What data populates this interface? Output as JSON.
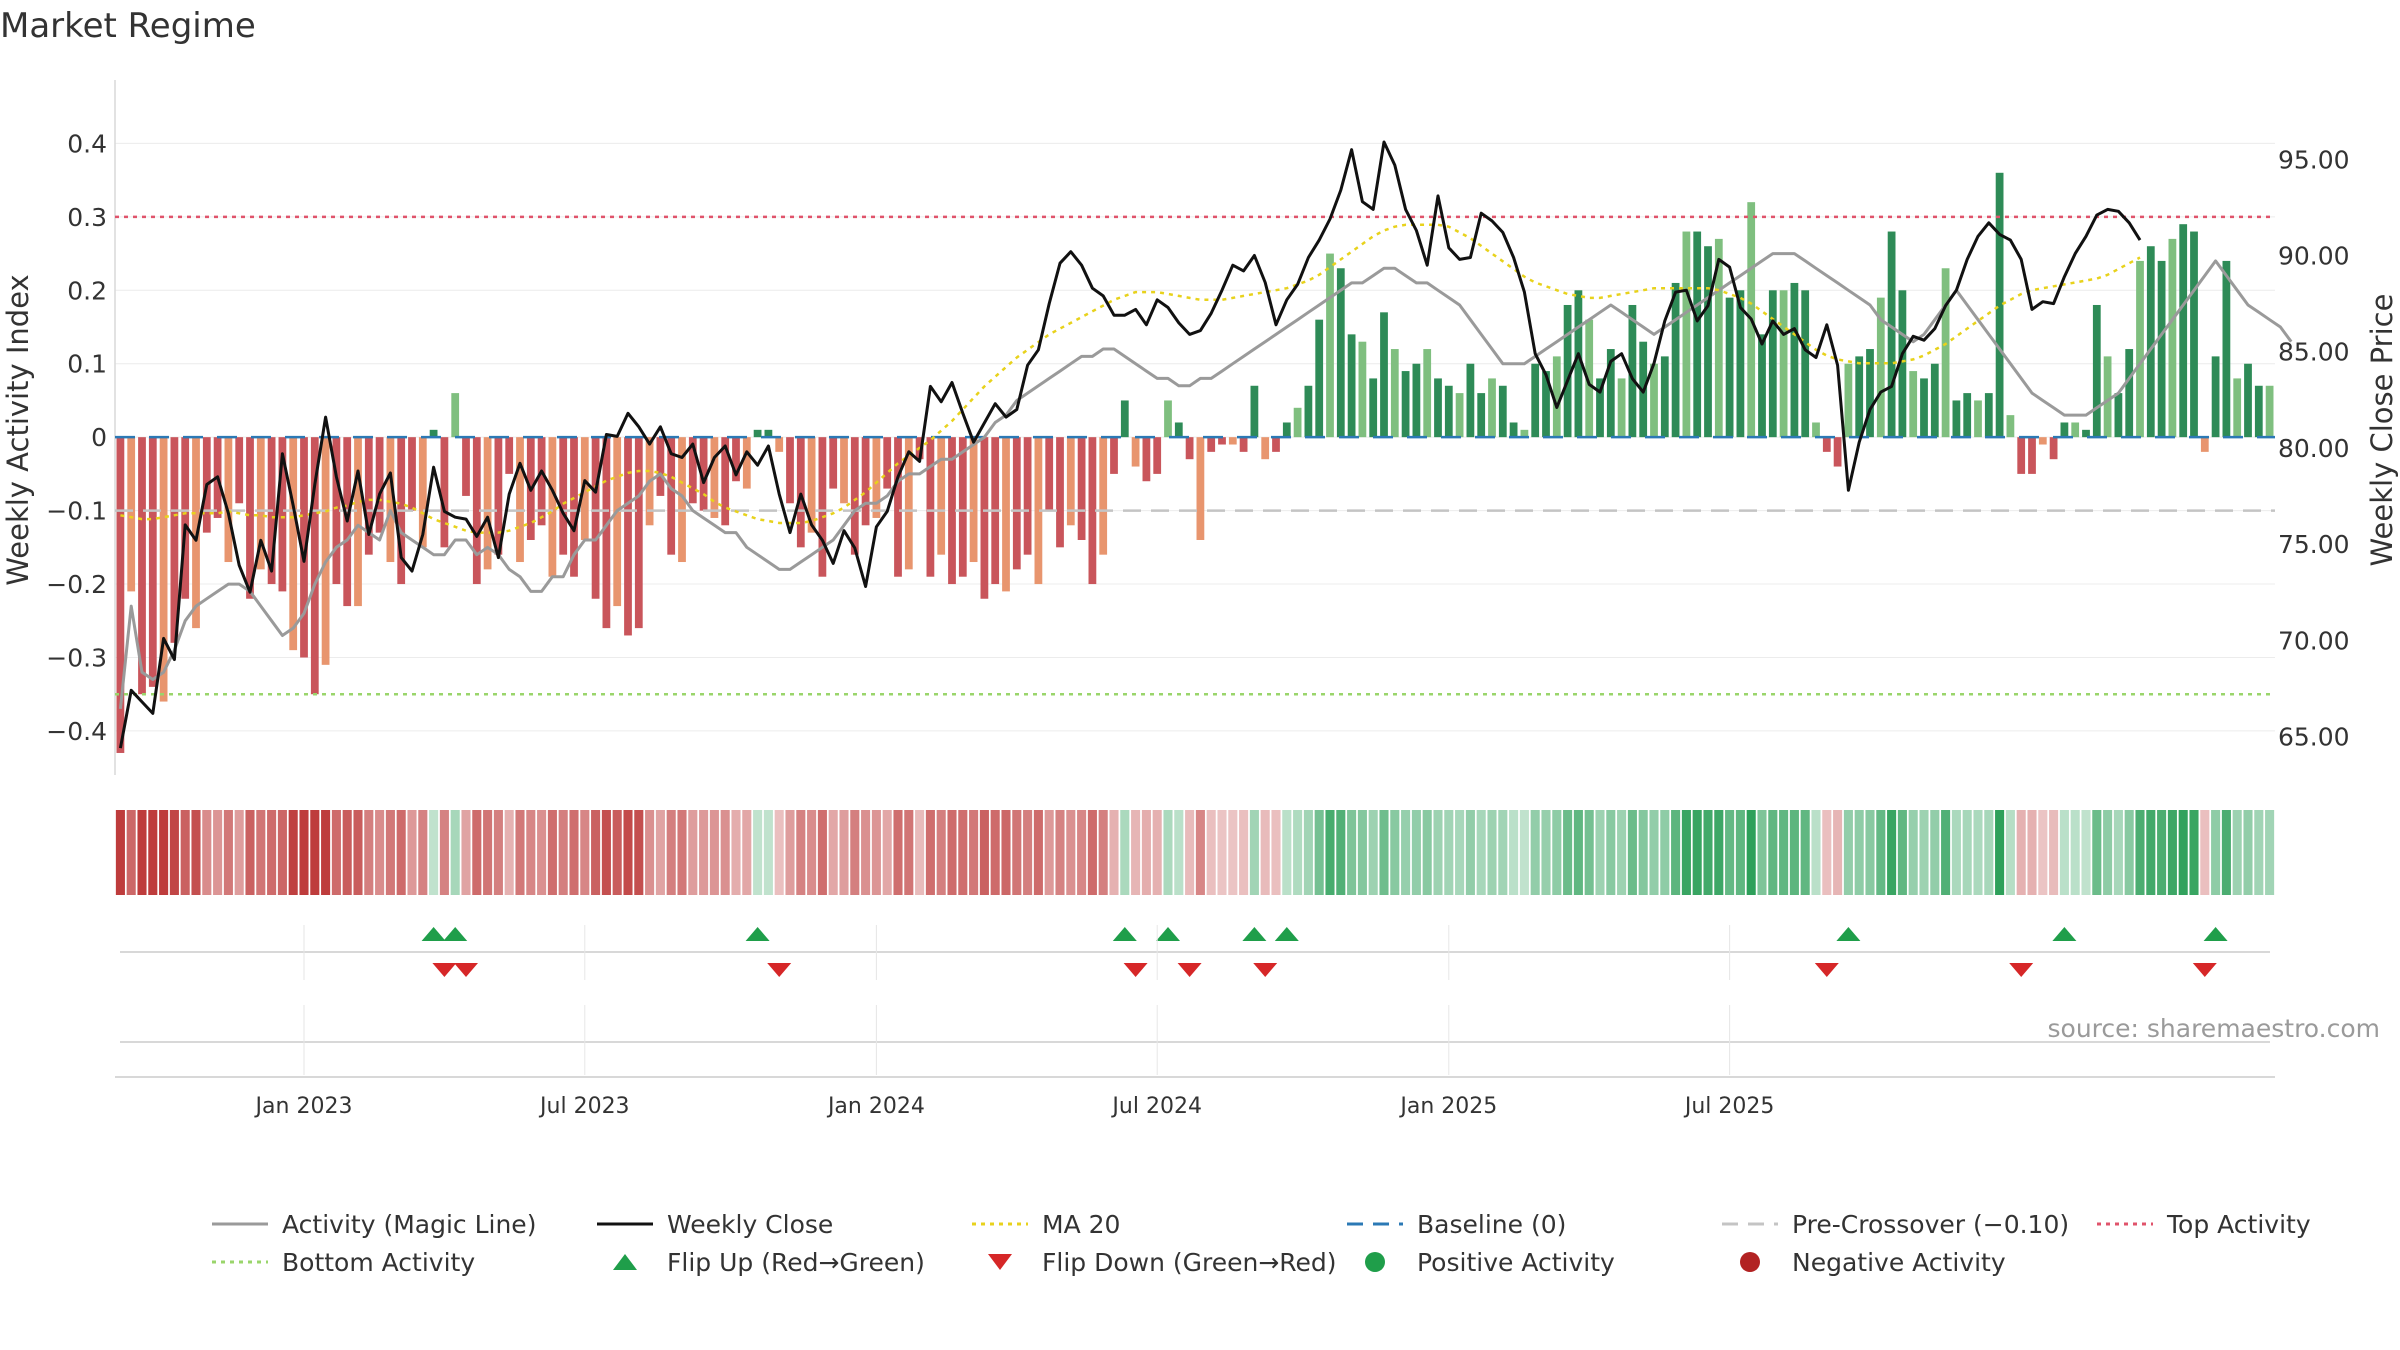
{
  "title": "Market Regime",
  "source": "source: sharemaestro.com",
  "chart_data": {
    "type": "bar",
    "y_left_label": "Weekly Activity Index",
    "y_right_label": "Weekly Close Price",
    "y_left_ticks": [
      "0.4",
      "0.3",
      "0.2",
      "0.1",
      "0",
      "−0.1",
      "−0.2",
      "−0.3",
      "−0.4"
    ],
    "y_right_ticks": [
      "95.00",
      "90.00",
      "85.00",
      "80.00",
      "75.00",
      "70.00",
      "65.00"
    ],
    "ylim_left": [
      -0.46,
      0.47
    ],
    "ylim_right": [
      63.0,
      98.5
    ],
    "x_ticks": [
      "Jan 2023",
      "Jul 2023",
      "Jan 2024",
      "Jul 2024",
      "Jan 2025",
      "Jul 2025"
    ],
    "x_tick_week_index": [
      17,
      43,
      70,
      96,
      123,
      149
    ],
    "top_activity": 0.3,
    "bottom_activity": -0.35,
    "pre_crossover": -0.1,
    "series": [
      {
        "name": "Weekly Activity Index",
        "values": [
          -0.43,
          -0.21,
          -0.35,
          -0.34,
          -0.36,
          -0.28,
          -0.22,
          -0.26,
          -0.13,
          -0.11,
          -0.17,
          -0.09,
          -0.22,
          -0.18,
          -0.2,
          -0.21,
          -0.29,
          -0.3,
          -0.35,
          -0.31,
          -0.2,
          -0.23,
          -0.23,
          -0.16,
          -0.13,
          -0.17,
          -0.2,
          -0.1,
          -0.15,
          0.01,
          -0.15,
          0.06,
          -0.08,
          -0.2,
          -0.18,
          -0.16,
          -0.05,
          -0.17,
          -0.14,
          -0.12,
          -0.19,
          -0.16,
          -0.19,
          -0.14,
          -0.22,
          -0.26,
          -0.23,
          -0.27,
          -0.26,
          -0.12,
          -0.08,
          -0.16,
          -0.17,
          -0.09,
          -0.1,
          -0.11,
          -0.12,
          -0.06,
          -0.07,
          0.01,
          0.01,
          -0.02,
          -0.09,
          -0.15,
          -0.13,
          -0.19,
          -0.07,
          -0.09,
          -0.16,
          -0.12,
          -0.11,
          -0.07,
          -0.19,
          -0.18,
          -0.03,
          -0.19,
          -0.16,
          -0.2,
          -0.19,
          -0.17,
          -0.22,
          -0.2,
          -0.21,
          -0.18,
          -0.16,
          -0.2,
          -0.1,
          -0.15,
          -0.12,
          -0.14,
          -0.2,
          -0.16,
          -0.05,
          0.05,
          -0.04,
          -0.06,
          -0.05,
          0.05,
          0.02,
          -0.03,
          -0.14,
          -0.02,
          -0.01,
          -0.01,
          -0.02,
          0.07,
          -0.03,
          -0.02,
          0.02,
          0.04,
          0.07,
          0.16,
          0.25,
          0.23,
          0.14,
          0.13,
          0.08,
          0.17,
          0.12,
          0.09,
          0.1,
          0.12,
          0.08,
          0.07,
          0.06,
          0.1,
          0.06,
          0.08,
          0.07,
          0.02,
          0.01,
          0.1,
          0.09,
          0.11,
          0.18,
          0.2,
          0.16,
          0.08,
          0.12,
          0.08,
          0.18,
          0.13,
          0.1,
          0.11,
          0.21,
          0.28,
          0.28,
          0.26,
          0.27,
          0.19,
          0.2,
          0.32,
          0.14,
          0.2,
          0.2,
          0.21,
          0.2,
          0.02,
          -0.02,
          -0.04,
          0.1,
          0.11,
          0.12,
          0.19,
          0.28,
          0.2,
          0.09,
          0.08,
          0.1,
          0.23,
          0.05,
          0.06,
          0.05,
          0.06,
          0.36,
          0.03,
          -0.05,
          -0.05,
          -0.01,
          -0.03,
          0.02,
          0.02,
          0.01,
          0.18,
          0.11,
          0.06,
          0.12,
          0.24,
          0.26,
          0.24,
          0.27,
          0.29,
          0.28,
          -0.02,
          0.11,
          0.24,
          0.08,
          0.1,
          0.07,
          0.07
        ]
      },
      {
        "name": "Activity (Magic Line)",
        "values": [
          -0.37,
          -0.23,
          -0.32,
          -0.33,
          -0.32,
          -0.29,
          -0.25,
          -0.23,
          -0.22,
          -0.21,
          -0.2,
          -0.2,
          -0.21,
          -0.23,
          -0.25,
          -0.27,
          -0.26,
          -0.24,
          -0.2,
          -0.17,
          -0.15,
          -0.14,
          -0.12,
          -0.13,
          -0.14,
          -0.1,
          -0.13,
          -0.14,
          -0.15,
          -0.16,
          -0.16,
          -0.14,
          -0.14,
          -0.16,
          -0.15,
          -0.16,
          -0.18,
          -0.19,
          -0.21,
          -0.21,
          -0.19,
          -0.19,
          -0.16,
          -0.14,
          -0.14,
          -0.12,
          -0.1,
          -0.09,
          -0.08,
          -0.06,
          -0.05,
          -0.07,
          -0.08,
          -0.1,
          -0.11,
          -0.12,
          -0.13,
          -0.13,
          -0.15,
          -0.16,
          -0.17,
          -0.18,
          -0.18,
          -0.17,
          -0.16,
          -0.15,
          -0.14,
          -0.12,
          -0.1,
          -0.09,
          -0.09,
          -0.08,
          -0.06,
          -0.05,
          -0.05,
          -0.04,
          -0.03,
          -0.03,
          -0.02,
          -0.01,
          0.0,
          0.02,
          0.03,
          0.05,
          0.06,
          0.07,
          0.08,
          0.09,
          0.1,
          0.11,
          0.11,
          0.12,
          0.12,
          0.11,
          0.1,
          0.09,
          0.08,
          0.08,
          0.07,
          0.07,
          0.08,
          0.08,
          0.09,
          0.1,
          0.11,
          0.12,
          0.13,
          0.14,
          0.15,
          0.16,
          0.17,
          0.18,
          0.19,
          0.2,
          0.21,
          0.21,
          0.22,
          0.23,
          0.23,
          0.22,
          0.21,
          0.21,
          0.2,
          0.19,
          0.18,
          0.16,
          0.14,
          0.12,
          0.1,
          0.1,
          0.1,
          0.11,
          0.12,
          0.13,
          0.14,
          0.15,
          0.16,
          0.17,
          0.18,
          0.17,
          0.16,
          0.15,
          0.14,
          0.15,
          0.16,
          0.17,
          0.18,
          0.19,
          0.2,
          0.21,
          0.22,
          0.23,
          0.24,
          0.25,
          0.25,
          0.25,
          0.24,
          0.23,
          0.22,
          0.21,
          0.2,
          0.19,
          0.18,
          0.16,
          0.15,
          0.14,
          0.13,
          0.14,
          0.16,
          0.18,
          0.2,
          0.18,
          0.16,
          0.14,
          0.12,
          0.1,
          0.08,
          0.06,
          0.05,
          0.04,
          0.03,
          0.03,
          0.03,
          0.04,
          0.05,
          0.06,
          0.08,
          0.1,
          0.12,
          0.14,
          0.16,
          0.18,
          0.2,
          0.22,
          0.24,
          0.22,
          0.2,
          0.18,
          0.17,
          0.16,
          0.15,
          0.13
        ]
      },
      {
        "name": "Weekly Close",
        "values": [
          64.4,
          67.4,
          66.8,
          66.2,
          70.1,
          69.0,
          76.0,
          75.2,
          78.1,
          78.5,
          76.6,
          73.9,
          72.5,
          75.2,
          73.6,
          79.7,
          77.0,
          74.1,
          78.1,
          81.6,
          78.5,
          76.2,
          78.8,
          75.5,
          77.6,
          78.7,
          74.3,
          73.6,
          75.5,
          79.0,
          76.7,
          76.4,
          76.3,
          75.4,
          76.4,
          74.3,
          77.6,
          79.2,
          77.8,
          78.8,
          77.8,
          76.6,
          75.7,
          78.3,
          77.7,
          80.7,
          80.6,
          81.8,
          81.1,
          80.2,
          81.1,
          79.7,
          79.5,
          80.2,
          78.2,
          79.5,
          80.1,
          78.6,
          79.8,
          79.1,
          80.1,
          77.6,
          75.6,
          77.6,
          76.0,
          75.2,
          74.0,
          75.7,
          74.8,
          72.8,
          75.9,
          76.7,
          78.5,
          79.8,
          79.3,
          83.2,
          82.4,
          83.4,
          81.8,
          80.3,
          81.3,
          82.3,
          81.6,
          82.0,
          84.3,
          85.1,
          87.5,
          89.6,
          90.2,
          89.5,
          88.3,
          87.9,
          86.9,
          86.9,
          87.2,
          86.4,
          87.7,
          87.3,
          86.5,
          85.9,
          86.1,
          87.0,
          88.2,
          89.5,
          89.2,
          90.0,
          88.6,
          86.4,
          87.7,
          88.5,
          89.9,
          90.8,
          91.9,
          93.4,
          95.5,
          92.8,
          92.4,
          95.9,
          94.7,
          92.4,
          91.3,
          89.5,
          93.1,
          90.4,
          89.8,
          89.9,
          92.2,
          91.8,
          91.2,
          89.9,
          88.1,
          84.9,
          83.8,
          82.1,
          83.5,
          84.9,
          83.3,
          82.9,
          84.5,
          84.9,
          83.6,
          82.9,
          84.4,
          86.6,
          88.1,
          88.2,
          86.6,
          87.4,
          89.8,
          89.4,
          87.3,
          86.7,
          85.4,
          86.6,
          85.9,
          86.2,
          85.1,
          84.7,
          86.4,
          84.3,
          77.8,
          80.3,
          82.0,
          82.9,
          83.2,
          84.9,
          85.8,
          85.6,
          86.2,
          87.4,
          88.2,
          89.8,
          91.0,
          91.7,
          91.1,
          90.8,
          89.8,
          87.2,
          87.6,
          87.5,
          88.9,
          90.1,
          91.0,
          92.1,
          92.4,
          92.3,
          91.7,
          90.8
        ]
      },
      {
        "name": "MA 20",
        "values": [
          76.5,
          76.4,
          76.3,
          76.3,
          76.4,
          76.5,
          76.6,
          76.6,
          76.6,
          76.6,
          76.7,
          76.6,
          76.5,
          76.5,
          76.4,
          76.4,
          76.4,
          76.5,
          76.6,
          76.7,
          76.9,
          77.0,
          77.2,
          77.3,
          77.3,
          77.2,
          77.1,
          76.9,
          76.6,
          76.3,
          76.1,
          75.9,
          75.7,
          75.6,
          75.6,
          75.6,
          75.7,
          75.9,
          76.1,
          76.4,
          76.7,
          77.1,
          77.4,
          77.7,
          78.0,
          78.3,
          78.5,
          78.7,
          78.8,
          78.8,
          78.7,
          78.5,
          78.2,
          77.9,
          77.6,
          77.2,
          76.9,
          76.7,
          76.5,
          76.3,
          76.2,
          76.1,
          76.1,
          76.1,
          76.2,
          76.4,
          76.6,
          76.9,
          77.3,
          77.7,
          78.2,
          78.7,
          79.2,
          79.6,
          80.0,
          80.4,
          80.9,
          81.4,
          82.0,
          82.6,
          83.2,
          83.7,
          84.2,
          84.7,
          85.1,
          85.5,
          85.9,
          86.2,
          86.5,
          86.8,
          87.1,
          87.4,
          87.7,
          87.9,
          88.1,
          88.1,
          88.1,
          88.0,
          87.9,
          87.8,
          87.7,
          87.7,
          87.7,
          87.8,
          87.9,
          88.0,
          88.1,
          88.2,
          88.3,
          88.5,
          88.7,
          89.0,
          89.4,
          89.8,
          90.2,
          90.6,
          91.0,
          91.3,
          91.5,
          91.6,
          91.6,
          91.6,
          91.6,
          91.5,
          91.2,
          90.9,
          90.5,
          90.1,
          89.7,
          89.3,
          88.9,
          88.6,
          88.4,
          88.2,
          88.0,
          87.9,
          87.8,
          87.8,
          87.9,
          88.0,
          88.1,
          88.2,
          88.3,
          88.3,
          88.3,
          88.3,
          88.3,
          88.3,
          88.2,
          88.0,
          87.8,
          87.5,
          87.1,
          86.7,
          86.3,
          85.9,
          85.5,
          85.1,
          84.8,
          84.6,
          84.5,
          84.4,
          84.4,
          84.4,
          84.4,
          84.5,
          84.6,
          84.8,
          85.1,
          85.4,
          85.8,
          86.2,
          86.6,
          87.0,
          87.4,
          87.7,
          88.0,
          88.2,
          88.3,
          88.4,
          88.5,
          88.6,
          88.7,
          88.8,
          89.0,
          89.3,
          89.6,
          89.9
        ]
      }
    ]
  },
  "legend": [
    {
      "label": "Activity (Magic Line)",
      "sym": "line",
      "color": "#9a9a9a"
    },
    {
      "label": "Weekly Close",
      "sym": "line",
      "color": "#111111"
    },
    {
      "label": "MA 20",
      "sym": "dotline",
      "color": "#e8d21c"
    },
    {
      "label": "Baseline (0)",
      "sym": "dashline",
      "color": "#2b79b5"
    },
    {
      "label": "Pre-Crossover (−0.10)",
      "sym": "dashline",
      "color": "#c4c4c4"
    },
    {
      "label": "Top Activity",
      "sym": "dotline",
      "color": "#e0536b"
    },
    {
      "label": "Bottom Activity",
      "sym": "dotline",
      "color": "#9ad56b"
    },
    {
      "label": "Flip Up (Red→Green)",
      "sym": "tri-up",
      "color": "#1f9e4a"
    },
    {
      "label": "Flip Down (Green→Red)",
      "sym": "tri-down",
      "color": "#d62728"
    },
    {
      "label": "Positive Activity",
      "sym": "dot",
      "color": "#1f9e4a"
    },
    {
      "label": "Negative Activity",
      "sym": "dot",
      "color": "#b22222"
    }
  ],
  "colors": {
    "pos_strong": "#2e8b57",
    "pos_light": "#7fbf7f",
    "neg_strong": "#c9555b",
    "neg_light": "#e8956e"
  }
}
